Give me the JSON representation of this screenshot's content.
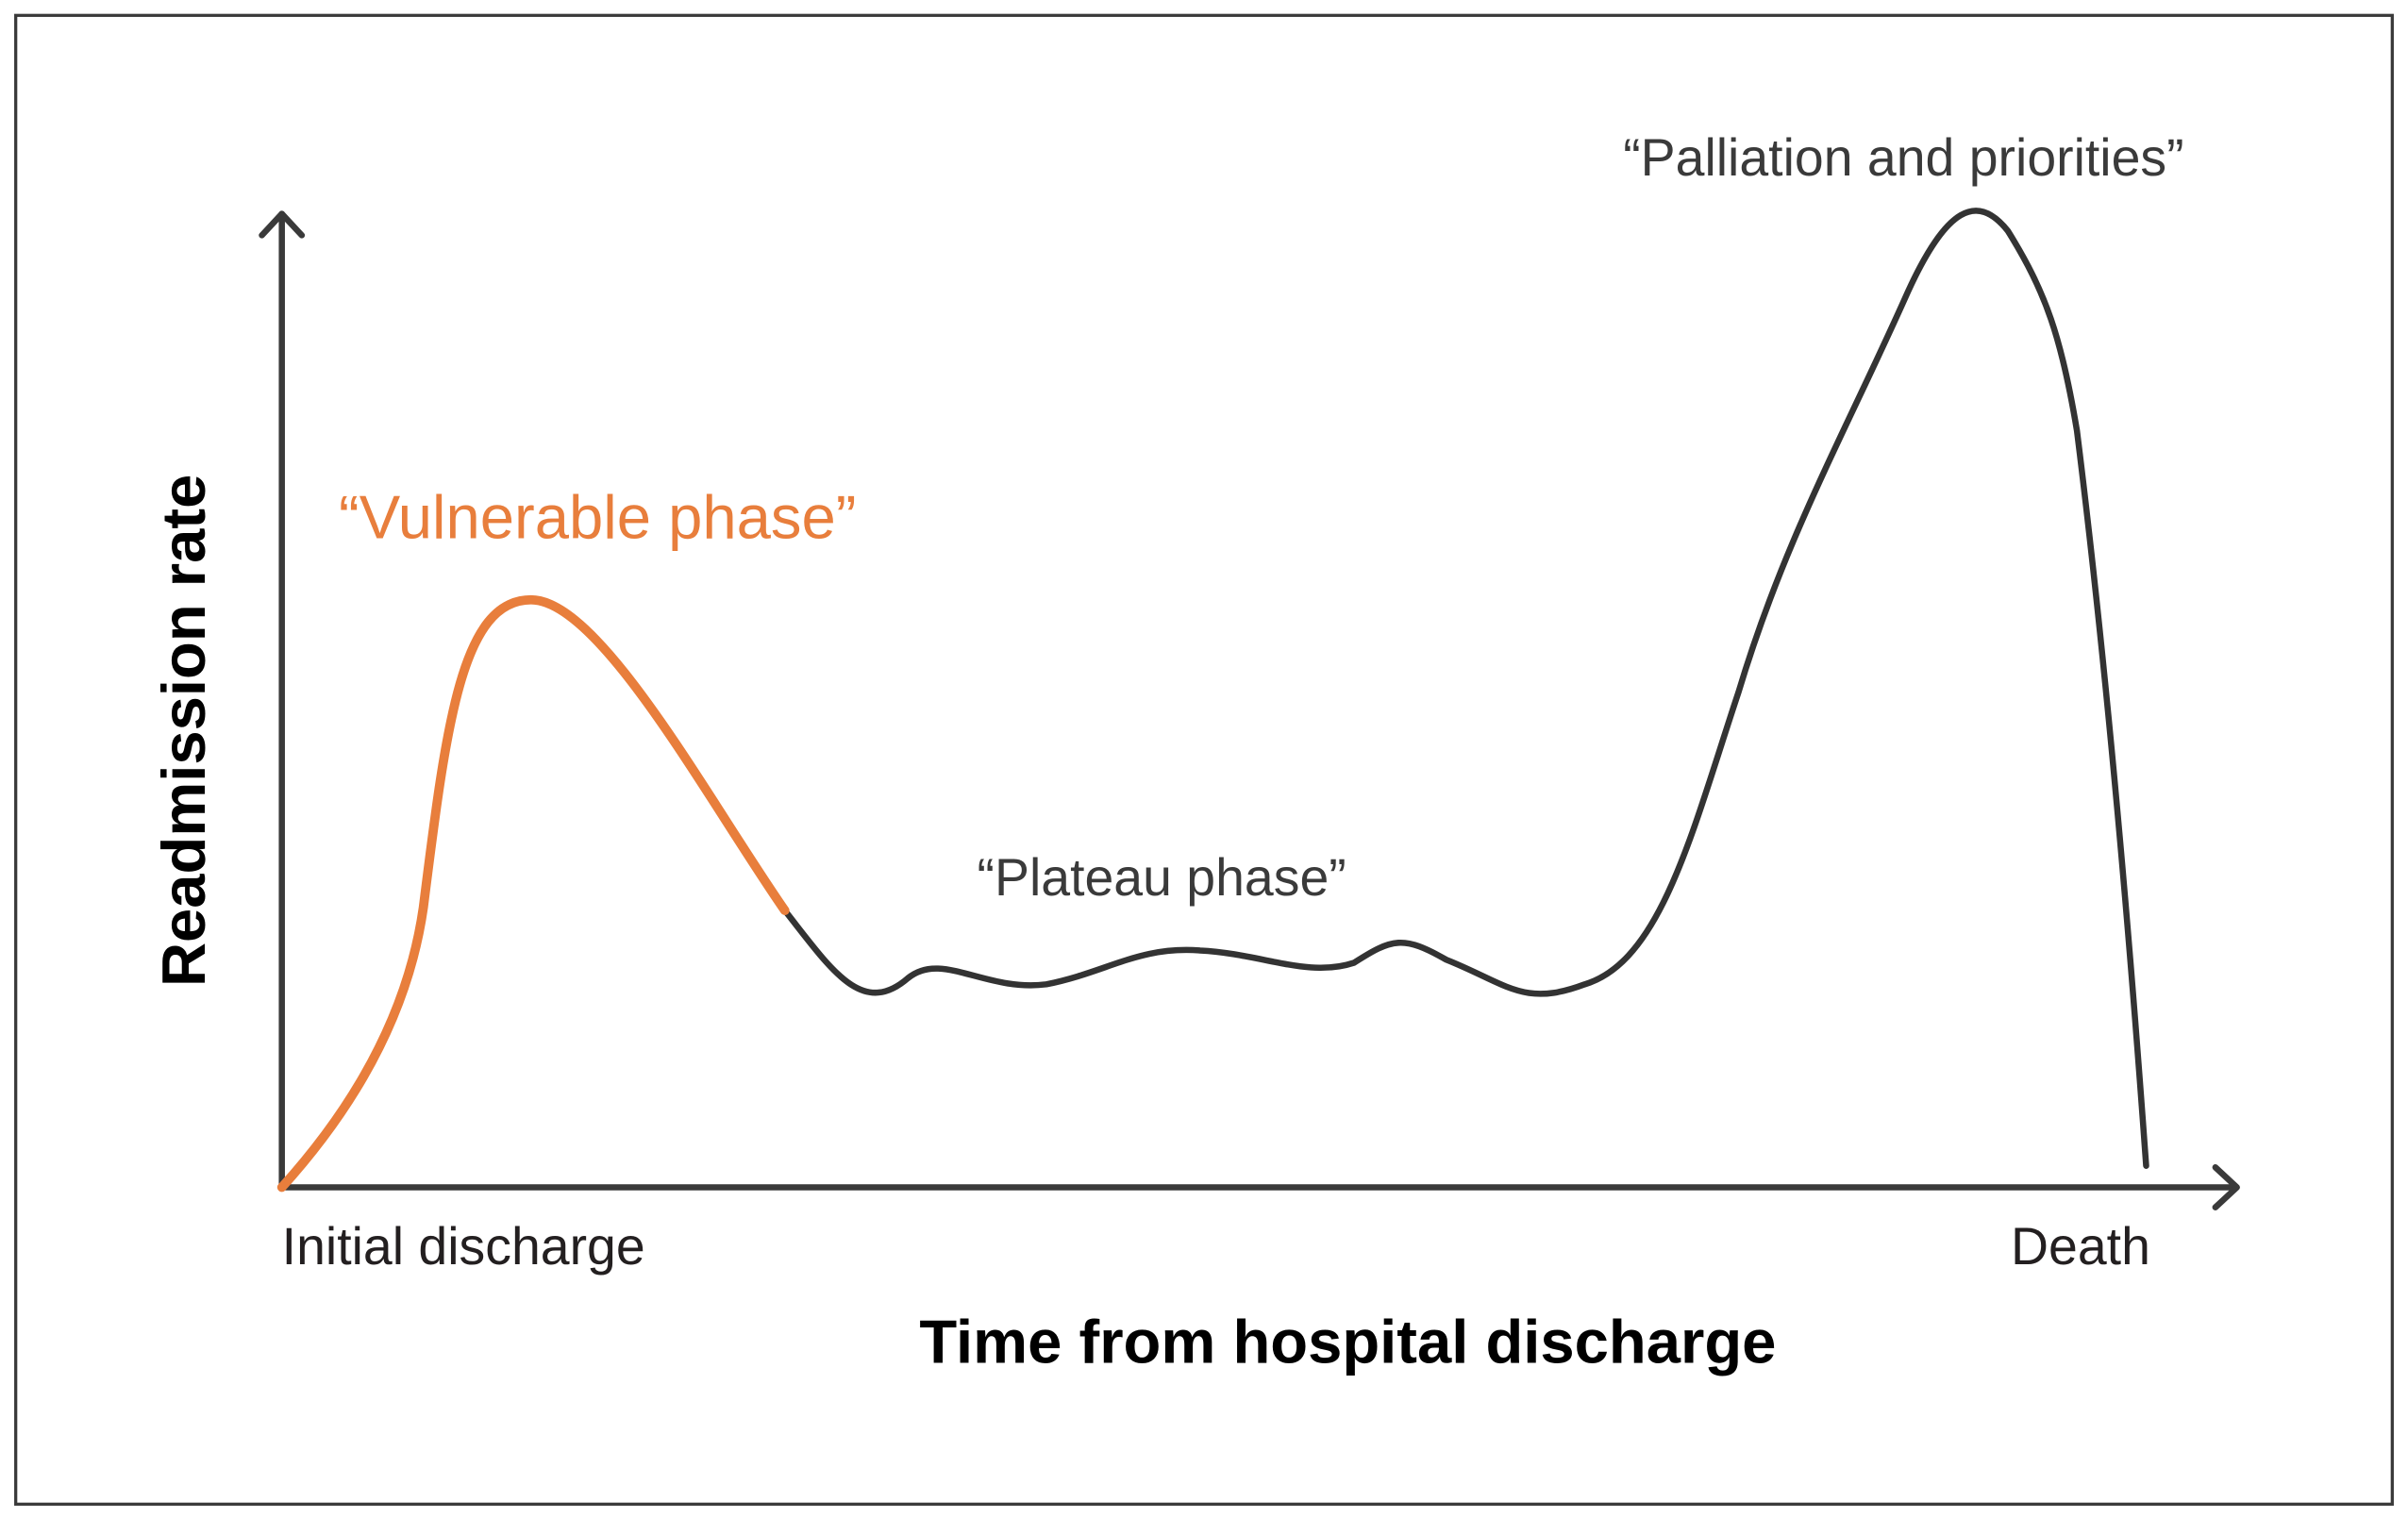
{
  "y_axis_label": "Readmission rate",
  "x_axis_label": "Time from hospital discharge",
  "x_start_label": "Initial discharge",
  "x_end_label": "Death",
  "annotations": {
    "vulnerable": "“Vulnerable phase”",
    "plateau": "“Plateau phase”",
    "palliation": "“Palliation and priorities”"
  }
}
